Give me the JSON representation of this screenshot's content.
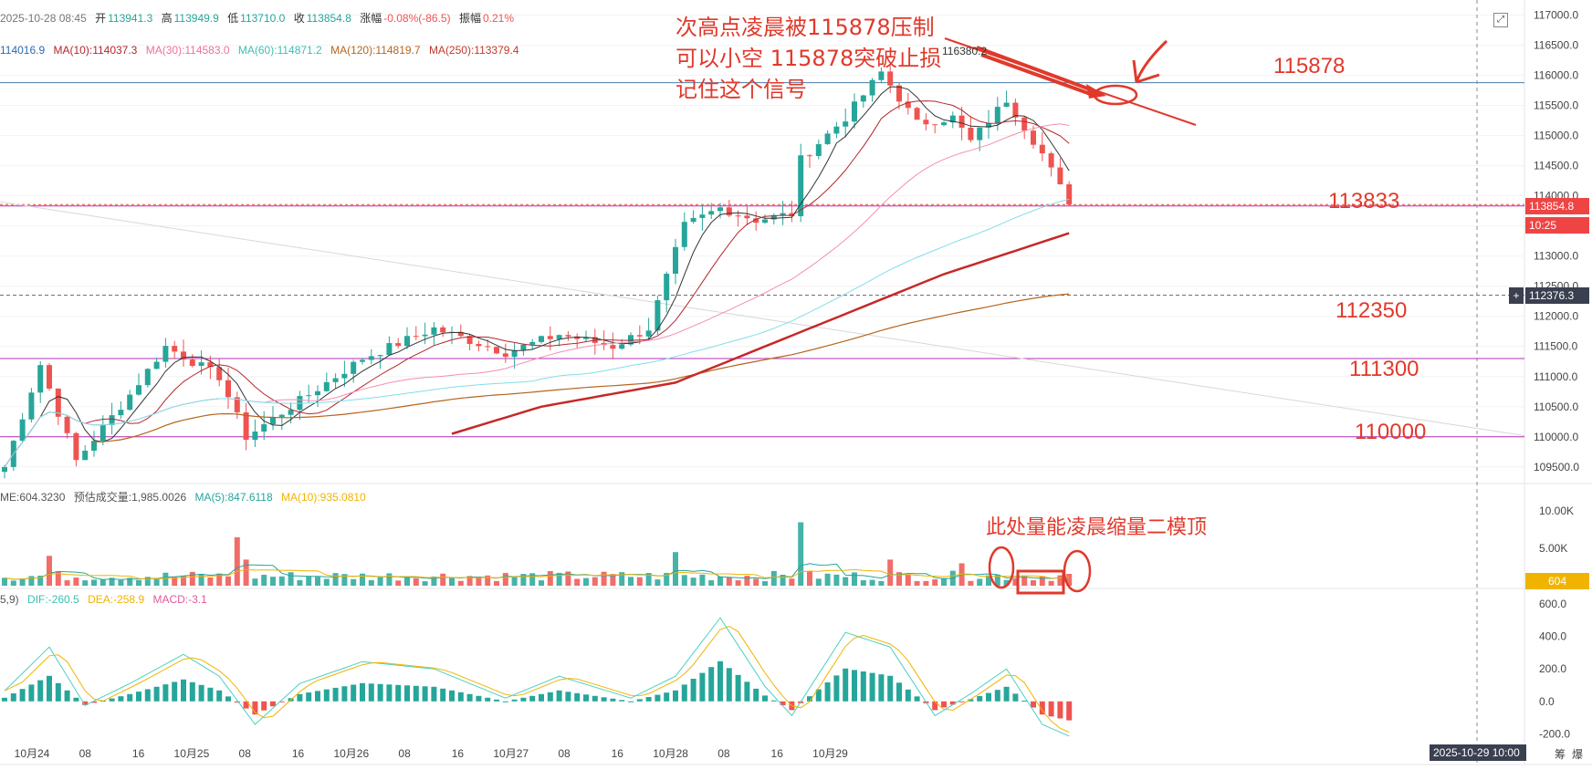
{
  "header": {
    "datetime": "2025-10-28 08:45",
    "open_label": "开",
    "open": "113941.3",
    "high_label": "高",
    "high": "113949.9",
    "low_label": "低",
    "low": "113710.0",
    "close_label": "收",
    "close": "113854.8",
    "change_label": "涨幅",
    "change": "-0.08%(-86.5)",
    "amp_label": "振幅",
    "amp": "0.21%"
  },
  "ma_line": {
    "ma5": "114016.9",
    "ma10": "MA(10):114037.3",
    "ma30": "MA(30):114583.0",
    "ma60": "MA(60):114871.2",
    "ma120": "MA(120):114819.7",
    "ma250": "MA(250):113379.4"
  },
  "vol_line": {
    "vol": "ME:604.3230",
    "est": "预估成交量:1,985.0026",
    "ma5": "MA(5):847.6118",
    "ma10": "MA(10):935.0810"
  },
  "macd_line": {
    "params": "5,9)",
    "dif": "DIF:-260.5",
    "dea": "DEA:-258.9",
    "macd": "MACD:-3.1"
  },
  "annotations": {
    "line1": "次高点凌晨被115878压制",
    "line2": "可以小空 115878突破止损",
    "line3": "记住这个信号",
    "peak_label": "116380.2",
    "vol_note": "此处量能凌晨缩量二模顶"
  },
  "levels": {
    "l1": "115878",
    "l2": "113833",
    "l3": "112350",
    "l4": "111300",
    "l5": "110000"
  },
  "tags": {
    "price": "113854.8",
    "countdown": "10:25",
    "crosshair": "112376.3",
    "plus": "+",
    "vol_value": "604",
    "crosshair_time": "2025-10-29 10:00",
    "corner_left": "筹",
    "corner_right": "爆"
  },
  "colors": {
    "up": "#26a69a",
    "down": "#ef5350",
    "annotation": "#e0392b",
    "ma5": "#333333",
    "ma10": "#b3262e",
    "ma30": "#f48fb1",
    "ma60": "#80deea",
    "ma120": "#b5651d",
    "ma250": "#c62828",
    "dif": "#4dd0c1",
    "dea": "#f0b400"
  },
  "chart_data": {
    "type": "candlestick",
    "symbol_timeframe": "15m",
    "x_ticks": [
      "10月24",
      "08",
      "16",
      "10月25",
      "08",
      "16",
      "10月26",
      "08",
      "16",
      "10月27",
      "08",
      "16",
      "10月28",
      "08",
      "16",
      "10月29"
    ],
    "price_axis": {
      "ticks": [
        117000,
        116500,
        116000,
        115500,
        115000,
        114500,
        114000,
        113500,
        113000,
        112500,
        112000,
        111500,
        111000,
        110500,
        110000,
        109500
      ],
      "ylim": [
        109300,
        117100
      ]
    },
    "volume_axis": {
      "ticks": [
        "10.00K",
        "5.00K"
      ]
    },
    "macd_axis": {
      "ticks": [
        600,
        400,
        200,
        0,
        -200
      ],
      "ylim": [
        -260,
        640
      ]
    },
    "horizontal_levels": [
      115878,
      113833,
      112350,
      111300,
      110000
    ],
    "price_anchors": [
      {
        "t": 0,
        "v": 109500
      },
      {
        "t": 4,
        "v": 111200
      },
      {
        "t": 8,
        "v": 109600
      },
      {
        "t": 14,
        "v": 110700
      },
      {
        "t": 18,
        "v": 111500
      },
      {
        "t": 24,
        "v": 111000
      },
      {
        "t": 27,
        "v": 110000
      },
      {
        "t": 32,
        "v": 110500
      },
      {
        "t": 40,
        "v": 111300
      },
      {
        "t": 48,
        "v": 111800
      },
      {
        "t": 56,
        "v": 111400
      },
      {
        "t": 62,
        "v": 111700
      },
      {
        "t": 68,
        "v": 111500
      },
      {
        "t": 72,
        "v": 111800
      },
      {
        "t": 76,
        "v": 113500
      },
      {
        "t": 80,
        "v": 113800
      },
      {
        "t": 84,
        "v": 113600
      },
      {
        "t": 88,
        "v": 113700
      },
      {
        "t": 89,
        "v": 114600
      },
      {
        "t": 94,
        "v": 115300
      },
      {
        "t": 98,
        "v": 116050
      },
      {
        "t": 102,
        "v": 115200
      },
      {
        "t": 106,
        "v": 115300
      },
      {
        "t": 108,
        "v": 114900
      },
      {
        "t": 112,
        "v": 115600
      },
      {
        "t": 116,
        "v": 114700
      },
      {
        "t": 119,
        "v": 113854.8
      }
    ],
    "ma250_anchors": [
      {
        "t": 50,
        "v": 110050
      },
      {
        "t": 60,
        "v": 110500
      },
      {
        "t": 75,
        "v": 110900
      },
      {
        "t": 90,
        "v": 111800
      },
      {
        "t": 105,
        "v": 112700
      },
      {
        "t": 119,
        "v": 113380
      }
    ],
    "volume_spikes": [
      {
        "t": 5,
        "v": 4000
      },
      {
        "t": 26,
        "v": 6500
      },
      {
        "t": 27,
        "v": 3500
      },
      {
        "t": 75,
        "v": 4500
      },
      {
        "t": 89,
        "v": 8500
      },
      {
        "t": 99,
        "v": 3500
      },
      {
        "t": 107,
        "v": 3000
      }
    ],
    "macd_anchors": [
      {
        "t": 0,
        "v": 50
      },
      {
        "t": 5,
        "v": 350
      },
      {
        "t": 9,
        "v": -50
      },
      {
        "t": 14,
        "v": 100
      },
      {
        "t": 20,
        "v": 300
      },
      {
        "t": 24,
        "v": 150
      },
      {
        "t": 28,
        "v": -180
      },
      {
        "t": 33,
        "v": 100
      },
      {
        "t": 40,
        "v": 250
      },
      {
        "t": 48,
        "v": 200
      },
      {
        "t": 56,
        "v": 0
      },
      {
        "t": 62,
        "v": 150
      },
      {
        "t": 70,
        "v": 0
      },
      {
        "t": 75,
        "v": 150
      },
      {
        "t": 80,
        "v": 550
      },
      {
        "t": 85,
        "v": 80
      },
      {
        "t": 88,
        "v": -120
      },
      {
        "t": 94,
        "v": 450
      },
      {
        "t": 99,
        "v": 350
      },
      {
        "t": 104,
        "v": -120
      },
      {
        "t": 108,
        "v": 30
      },
      {
        "t": 112,
        "v": 200
      },
      {
        "t": 116,
        "v": -180
      },
      {
        "t": 119,
        "v": -260
      }
    ]
  }
}
